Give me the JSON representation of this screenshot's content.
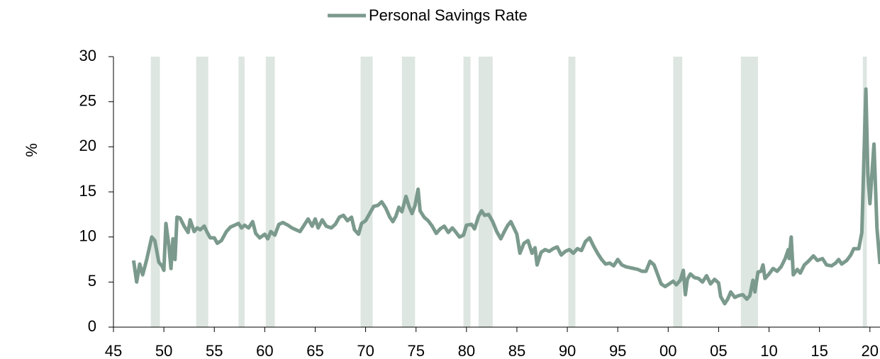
{
  "chart_data": {
    "type": "line",
    "legend": "top",
    "ylabel": "%",
    "xlim": [
      1945,
      2021
    ],
    "ylim": [
      0,
      30
    ],
    "yticks": [
      0,
      5,
      10,
      15,
      20,
      25,
      30
    ],
    "xticks": [
      {
        "value": 1945,
        "label": "45"
      },
      {
        "value": 1950,
        "label": "50"
      },
      {
        "value": 1955,
        "label": "55"
      },
      {
        "value": 1960,
        "label": "60"
      },
      {
        "value": 1965,
        "label": "65"
      },
      {
        "value": 1970,
        "label": "70"
      },
      {
        "value": 1975,
        "label": "75"
      },
      {
        "value": 1980,
        "label": "80"
      },
      {
        "value": 1985,
        "label": "85"
      },
      {
        "value": 1990,
        "label": "90"
      },
      {
        "value": 1995,
        "label": "95"
      },
      {
        "value": 2000,
        "label": "00"
      },
      {
        "value": 2005,
        "label": "05"
      },
      {
        "value": 2010,
        "label": "10"
      },
      {
        "value": 2015,
        "label": "15"
      },
      {
        "value": 2020,
        "label": "20"
      }
    ],
    "recession_color": "#dde6e1",
    "recessions": [
      [
        1948.7,
        1949.6
      ],
      [
        1953.2,
        1954.4
      ],
      [
        1957.4,
        1958.0
      ],
      [
        1960.1,
        1961.0
      ],
      [
        1969.5,
        1970.7
      ],
      [
        1973.6,
        1974.9
      ],
      [
        1979.7,
        1980.4
      ],
      [
        1981.2,
        1982.6
      ],
      [
        1990.1,
        1990.8
      ],
      [
        2000.5,
        2001.4
      ],
      [
        2007.2,
        2008.9
      ],
      [
        2019.3,
        2019.7
      ]
    ],
    "x": [
      1947.0,
      1947.3,
      1947.6,
      1947.9,
      1948.3,
      1948.8,
      1949.1,
      1949.5,
      1949.8,
      1950.0,
      1950.2,
      1950.5,
      1950.7,
      1950.9,
      1951.1,
      1951.3,
      1951.6,
      1952.0,
      1952.4,
      1952.6,
      1953.0,
      1953.3,
      1953.6,
      1954.0,
      1954.3,
      1954.6,
      1955.0,
      1955.3,
      1955.7,
      1956.2,
      1956.6,
      1957.0,
      1957.4,
      1957.7,
      1958.0,
      1958.4,
      1958.8,
      1959.1,
      1959.5,
      1960.0,
      1960.3,
      1960.6,
      1961.0,
      1961.4,
      1961.8,
      1962.3,
      1962.7,
      1963.1,
      1963.5,
      1963.9,
      1964.3,
      1964.7,
      1965.0,
      1965.3,
      1965.7,
      1966.1,
      1966.6,
      1967.0,
      1967.4,
      1967.8,
      1968.2,
      1968.6,
      1968.9,
      1969.3,
      1969.6,
      1970.0,
      1970.4,
      1970.8,
      1971.2,
      1971.6,
      1972.0,
      1972.4,
      1972.7,
      1973.0,
      1973.3,
      1973.6,
      1974.0,
      1974.3,
      1974.6,
      1974.9,
      1975.2,
      1975.4,
      1975.8,
      1976.2,
      1976.6,
      1977.0,
      1977.4,
      1977.8,
      1978.2,
      1978.6,
      1978.9,
      1979.3,
      1979.7,
      1980.0,
      1980.5,
      1980.8,
      1981.2,
      1981.5,
      1981.8,
      1982.2,
      1982.6,
      1983.0,
      1983.4,
      1983.8,
      1984.1,
      1984.4,
      1984.7,
      1985.0,
      1985.3,
      1985.7,
      1986.1,
      1986.5,
      1986.8,
      1987.0,
      1987.4,
      1987.8,
      1988.2,
      1988.6,
      1989.0,
      1989.4,
      1989.8,
      1990.2,
      1990.6,
      1991.0,
      1991.4,
      1991.8,
      1992.2,
      1992.6,
      1993.0,
      1993.4,
      1993.8,
      1994.2,
      1994.6,
      1995.0,
      1995.4,
      1995.8,
      1996.2,
      1996.6,
      1997.0,
      1997.4,
      1997.8,
      1998.2,
      1998.6,
      1998.9,
      1999.3,
      1999.7,
      2000.1,
      2000.5,
      2000.8,
      2001.2,
      2001.5,
      2001.7,
      2001.9,
      2002.2,
      2002.6,
      2003.0,
      2003.4,
      2003.8,
      2004.2,
      2004.6,
      2005.0,
      2005.2,
      2005.6,
      2005.9,
      2006.2,
      2006.6,
      2007.0,
      2007.4,
      2007.8,
      2008.1,
      2008.4,
      2008.6,
      2008.9,
      2009.2,
      2009.4,
      2009.6,
      2010.0,
      2010.4,
      2010.8,
      2011.2,
      2011.6,
      2011.9,
      2012.0,
      2012.2,
      2012.4,
      2012.8,
      2013.1,
      2013.5,
      2013.9,
      2014.4,
      2014.8,
      2015.3,
      2015.7,
      2016.2,
      2016.6,
      2016.9,
      2017.2,
      2017.7,
      2018.1,
      2018.4,
      2018.9,
      2019.2,
      2019.6,
      2019.8,
      2020.0,
      2020.4,
      2020.7,
      2021.0
    ],
    "series": [
      {
        "name": "Personal Savings Rate",
        "color": "#7b9a8d",
        "values": [
          7.4,
          5.0,
          7.0,
          5.8,
          7.5,
          10.0,
          9.6,
          7.2,
          6.8,
          6.3,
          11.5,
          9.0,
          6.5,
          9.8,
          7.5,
          12.2,
          12.1,
          11.2,
          10.5,
          11.9,
          10.6,
          11.0,
          10.8,
          11.2,
          10.5,
          9.9,
          9.9,
          9.3,
          9.6,
          10.6,
          11.1,
          11.3,
          11.5,
          11.0,
          11.3,
          11.0,
          11.7,
          10.4,
          9.9,
          10.3,
          9.8,
          10.6,
          10.2,
          11.4,
          11.6,
          11.3,
          11.0,
          10.8,
          10.6,
          11.3,
          12.0,
          11.2,
          12.0,
          11.0,
          11.9,
          11.2,
          11.0,
          11.4,
          12.2,
          12.4,
          11.8,
          12.2,
          10.8,
          10.3,
          11.5,
          11.8,
          12.6,
          13.4,
          13.5,
          13.9,
          13.2,
          12.2,
          11.7,
          12.3,
          13.3,
          12.8,
          14.5,
          13.4,
          12.6,
          13.5,
          15.3,
          12.9,
          12.2,
          11.8,
          11.2,
          10.4,
          10.9,
          11.2,
          10.5,
          11.0,
          10.6,
          10.0,
          10.2,
          11.3,
          11.4,
          10.9,
          12.3,
          12.9,
          12.4,
          12.5,
          11.7,
          10.6,
          9.8,
          10.7,
          11.3,
          11.7,
          11.0,
          10.3,
          8.2,
          9.3,
          9.6,
          8.2,
          8.8,
          6.9,
          8.3,
          8.6,
          8.4,
          8.7,
          8.9,
          8.0,
          8.4,
          8.6,
          8.2,
          8.7,
          8.5,
          9.5,
          9.9,
          9.0,
          8.2,
          7.5,
          7.0,
          7.1,
          6.8,
          7.5,
          6.9,
          6.7,
          6.6,
          6.5,
          6.4,
          6.2,
          6.2,
          7.3,
          6.9,
          6.0,
          4.8,
          4.5,
          4.8,
          5.1,
          4.7,
          5.2,
          6.3,
          3.6,
          5.3,
          5.9,
          5.5,
          5.4,
          5.0,
          5.7,
          4.8,
          5.3,
          4.9,
          3.4,
          2.6,
          3.1,
          3.9,
          3.3,
          3.5,
          3.6,
          3.1,
          3.5,
          5.2,
          3.9,
          6.1,
          6.2,
          6.9,
          5.4,
          5.9,
          6.5,
          6.2,
          6.7,
          7.6,
          8.6,
          7.6,
          10.0,
          5.8,
          6.4,
          6.0,
          6.9,
          7.3,
          7.9,
          7.4,
          7.6,
          6.9,
          6.8,
          7.1,
          7.5,
          7.0,
          7.4,
          8.0,
          8.7,
          8.7,
          10.5,
          26.4,
          17.0,
          13.7,
          20.3,
          11.0,
          7.0
        ]
      }
    ]
  }
}
